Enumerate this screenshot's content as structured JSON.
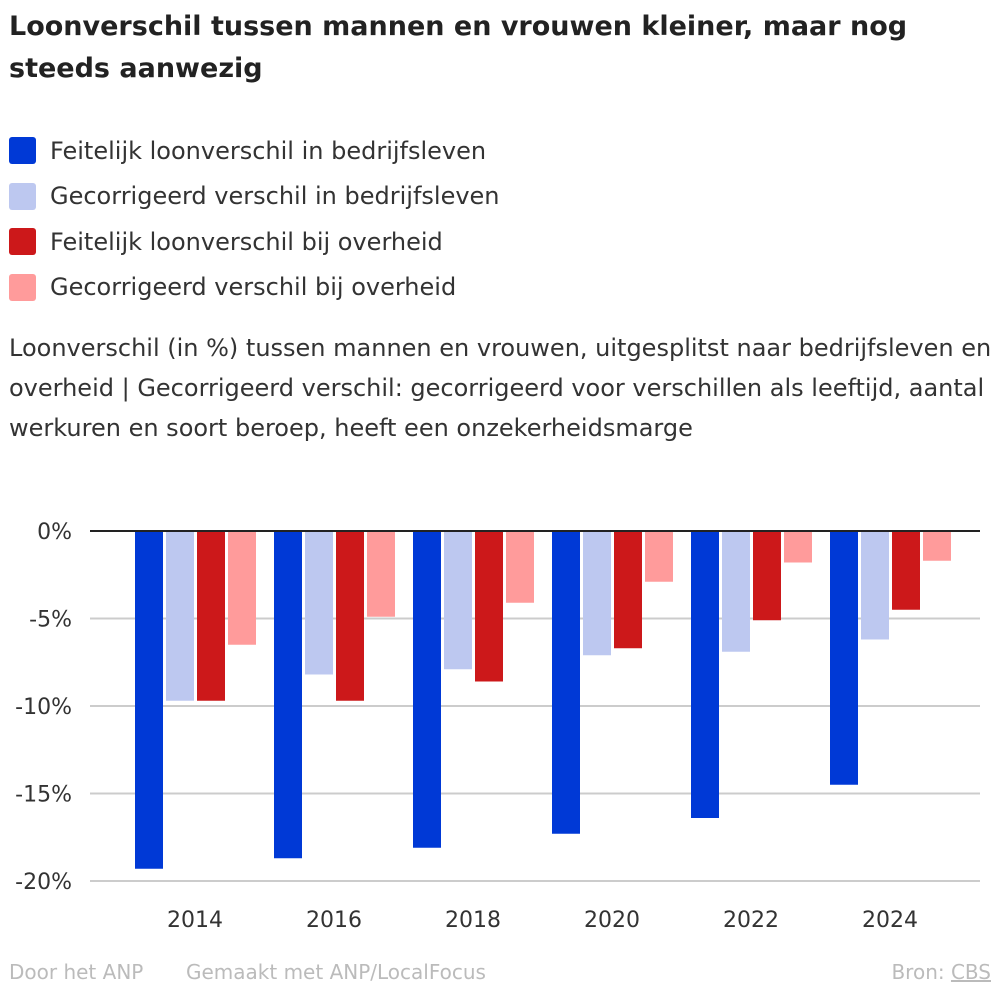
{
  "title": "Loonverschil tussen mannen en vrouwen kleiner, maar nog steeds aanwezig",
  "subtitle": "Loonverschil (in %) tussen mannen en vrouwen, uitgesplitst naar bedrijfsleven en overheid | Gecorrigeerd verschil: gecorrigeerd voor verschillen als leeftijd, aantal werkuren en soort beroep, heeft een onzekerheidsmarge",
  "footer": {
    "author": "Door het ANP",
    "made": "Gemaakt met ANP/LocalFocus",
    "source_label": "Bron:",
    "source": "CBS"
  },
  "chart_data": {
    "type": "bar",
    "categories": [
      "2014",
      "2016",
      "2018",
      "2020",
      "2022",
      "2024"
    ],
    "series": [
      {
        "name": "Feitelijk loonverschil in bedrijfsleven",
        "color": "#0039d6",
        "values": [
          -19.3,
          -18.7,
          -18.1,
          -17.3,
          -16.4,
          -14.5
        ]
      },
      {
        "name": "Gecorrigeerd verschil in bedrijfsleven",
        "color": "#bdc8f0",
        "values": [
          -9.7,
          -8.2,
          -7.9,
          -7.1,
          -6.9,
          -6.2
        ]
      },
      {
        "name": "Feitelijk loonverschil bij overheid",
        "color": "#cc181a",
        "values": [
          -9.7,
          -9.7,
          -8.6,
          -6.7,
          -5.1,
          -4.5
        ]
      },
      {
        "name": "Gecorrigeerd verschil bij overheid",
        "color": "#ff9b9b",
        "values": [
          -6.5,
          -4.9,
          -4.1,
          -2.9,
          -1.8,
          -1.7
        ]
      }
    ],
    "yticks": [
      "0%",
      "-5%",
      "-10%",
      "-15%",
      "-20%"
    ],
    "ylim": [
      -20,
      0
    ],
    "grid": true,
    "legend": "top"
  }
}
